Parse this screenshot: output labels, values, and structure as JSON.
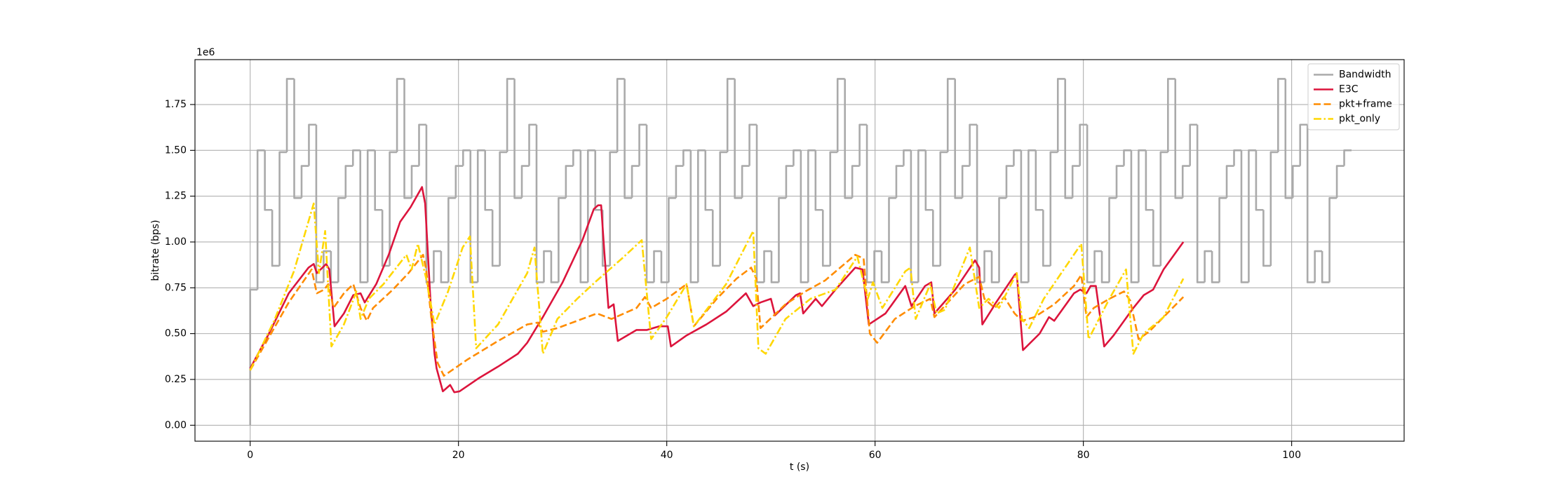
{
  "chart_data": {
    "type": "line",
    "xlabel": "t (s)",
    "ylabel": "bitrate (bps)",
    "y_offset_label": "1e6",
    "xlim": [
      -5.3,
      110.8
    ],
    "ylim": [
      -87000,
      1995000
    ],
    "xticks": [
      0,
      20,
      40,
      60,
      80,
      100
    ],
    "yticks": [
      {
        "value": 0,
        "label": "0.00"
      },
      {
        "value": 250000,
        "label": "0.25"
      },
      {
        "value": 500000,
        "label": "0.50"
      },
      {
        "value": 750000,
        "label": "0.75"
      },
      {
        "value": 1000000,
        "label": "1.00"
      },
      {
        "value": 1250000,
        "label": "1.25"
      },
      {
        "value": 1500000,
        "label": "1.50"
      },
      {
        "value": 1750000,
        "label": "1.75"
      }
    ],
    "grid": true,
    "legend": "upper right",
    "series": [
      {
        "name": "Bandwidth",
        "color": "#aaaaaa",
        "linestyle": "solid",
        "drawstyle": "steps-post",
        "x": [
          0,
          0,
          0.705,
          1.41,
          2.115,
          2.82,
          3.525,
          4.23,
          4.935,
          5.64,
          6.345,
          7.05,
          7.755,
          8.46,
          9.165,
          9.87,
          10.575,
          11.28,
          11.985,
          12.69,
          13.395,
          14.1,
          14.805,
          15.51,
          16.215,
          16.92,
          17.625,
          18.33,
          19.035,
          19.74,
          20.445,
          21.15,
          21.855,
          22.56,
          23.265,
          23.97,
          24.675,
          25.38,
          26.085,
          26.79,
          27.495,
          28.2,
          28.905,
          29.61,
          30.315,
          31.02,
          31.725,
          32.43,
          33.135,
          33.84,
          34.545,
          35.25,
          35.955,
          36.66,
          37.365,
          38.07,
          38.775,
          39.48,
          40.185,
          40.89,
          41.595,
          42.3,
          43.005,
          43.71,
          44.415,
          45.12,
          45.825,
          46.53,
          47.235,
          47.94,
          48.645,
          49.35,
          50.055,
          50.76,
          51.465,
          52.17,
          52.875,
          53.58,
          54.285,
          54.99,
          55.695,
          56.4,
          57.105,
          57.81,
          58.515,
          59.22,
          59.925,
          60.63,
          61.335,
          62.04,
          62.745,
          63.45,
          64.155,
          64.86,
          65.565,
          66.27,
          66.975,
          67.68,
          68.385,
          69.09,
          69.795,
          70.5,
          71.205,
          71.91,
          72.615,
          73.32,
          74.025,
          74.73,
          75.435,
          76.14,
          76.845,
          77.55,
          78.255,
          78.96,
          79.665,
          80.37,
          81.075,
          81.78,
          82.485,
          83.19,
          83.895,
          84.6,
          85.305,
          86.01,
          86.715,
          87.42,
          88.125,
          88.83,
          89.535,
          90.24,
          90.945,
          91.65,
          92.355,
          93.06,
          93.765,
          94.47,
          95.175,
          95.88,
          96.585,
          97.29,
          97.995,
          98.7,
          99.405,
          100.11,
          100.815,
          101.52,
          102.225,
          102.93,
          103.635,
          104.34,
          105.045,
          105.75
        ],
        "values": [
          0,
          740000,
          1500000,
          1175000,
          870000,
          1490000,
          1890000,
          1240000,
          1415000,
          1640000,
          780000,
          950000,
          780000,
          1240000,
          1415000,
          1500000,
          780000,
          1500000,
          1175000,
          870000,
          1490000,
          1890000,
          1240000,
          1415000,
          1640000,
          780000,
          950000,
          780000,
          1240000,
          1415000,
          1500000,
          780000,
          1500000,
          1175000,
          870000,
          1490000,
          1890000,
          1240000,
          1415000,
          1640000,
          780000,
          950000,
          780000,
          1240000,
          1415000,
          1500000,
          780000,
          1500000,
          1175000,
          870000,
          1490000,
          1890000,
          1240000,
          1415000,
          1640000,
          780000,
          950000,
          780000,
          1240000,
          1415000,
          1500000,
          780000,
          1500000,
          1175000,
          870000,
          1490000,
          1890000,
          1240000,
          1415000,
          1640000,
          780000,
          950000,
          780000,
          1240000,
          1415000,
          1500000,
          780000,
          1500000,
          1175000,
          870000,
          1490000,
          1890000,
          1240000,
          1415000,
          1640000,
          780000,
          950000,
          780000,
          1240000,
          1415000,
          1500000,
          780000,
          1500000,
          1175000,
          870000,
          1490000,
          1890000,
          1240000,
          1415000,
          1640000,
          780000,
          950000,
          780000,
          1240000,
          1415000,
          1500000,
          780000,
          1500000,
          1175000,
          870000,
          1490000,
          1890000,
          1240000,
          1415000,
          1640000,
          780000,
          950000,
          780000,
          1240000,
          1415000,
          1500000,
          780000,
          1500000,
          1175000,
          870000,
          1490000,
          1890000,
          1240000,
          1415000,
          1640000,
          780000,
          950000,
          780000,
          1240000,
          1415000,
          1500000,
          780000,
          1500000,
          1175000,
          870000,
          1490000,
          1890000,
          1240000,
          1415000,
          1640000,
          780000,
          950000,
          780000,
          1240000,
          1415000,
          1500000,
          1500000
        ]
      },
      {
        "name": "E3C",
        "color": "#dc143c",
        "linestyle": "solid",
        "x": [
          0,
          1.8,
          3.7,
          5.6,
          6.1,
          6.4,
          7.3,
          7.6,
          8.1,
          9.0,
          9.9,
          10.6,
          11.0,
          12.1,
          13.3,
          14.4,
          15.4,
          16.1,
          16.5,
          16.8,
          17.3,
          17.7,
          17.9,
          18.5,
          19.2,
          19.6,
          20.1,
          21.9,
          23.8,
          25.7,
          26.6,
          28.1,
          30.0,
          31.9,
          33.0,
          33.4,
          33.7,
          34.0,
          34.4,
          34.9,
          35.3,
          36.2,
          37.1,
          38.1,
          39.3,
          40.1,
          40.4,
          41.9,
          43.8,
          45.7,
          47.6,
          48.3,
          49.0,
          50.0,
          50.4,
          52.4,
          52.8,
          53.1,
          54.3,
          54.9,
          56.2,
          58.1,
          58.8,
          59.4,
          61.0,
          62.9,
          63.5,
          64.8,
          65.4,
          65.7,
          67.7,
          69.6,
          70.0,
          70.3,
          71.3,
          71.5,
          73.4,
          73.6,
          74.2,
          75.8,
          76.7,
          77.2,
          79.1,
          79.7,
          80.3,
          80.7,
          81.2,
          82.0,
          82.9,
          84.8,
          85.8,
          86.7,
          87.7,
          89.6
        ],
        "values": [
          310000,
          500000,
          720000,
          860000,
          880000,
          830000,
          880000,
          850000,
          540000,
          610000,
          710000,
          720000,
          670000,
          770000,
          930000,
          1110000,
          1190000,
          1260000,
          1300000,
          1210000,
          690000,
          390000,
          310000,
          185000,
          220000,
          180000,
          185000,
          255000,
          320000,
          390000,
          450000,
          590000,
          780000,
          1010000,
          1180000,
          1200000,
          1200000,
          950000,
          640000,
          660000,
          460000,
          490000,
          520000,
          520000,
          540000,
          540000,
          430000,
          490000,
          550000,
          620000,
          720000,
          650000,
          670000,
          690000,
          600000,
          710000,
          720000,
          610000,
          690000,
          650000,
          740000,
          860000,
          850000,
          550000,
          610000,
          760000,
          650000,
          760000,
          780000,
          610000,
          740000,
          900000,
          860000,
          550000,
          640000,
          660000,
          820000,
          830000,
          410000,
          500000,
          590000,
          570000,
          720000,
          740000,
          720000,
          760000,
          760000,
          430000,
          490000,
          640000,
          710000,
          740000,
          850000,
          1000000
        ]
      },
      {
        "name": "pkt+frame",
        "color": "#ff8c00",
        "linestyle": "dashed",
        "x": [
          0,
          1.8,
          3.7,
          5.9,
          6.4,
          7.1,
          7.5,
          8.0,
          9.0,
          9.9,
          10.6,
          11.2,
          11.8,
          13.7,
          15.2,
          16.6,
          16.9,
          17.4,
          18.0,
          18.6,
          20.9,
          23.8,
          26.6,
          27.6,
          28.1,
          29.5,
          31.4,
          33.3,
          34.7,
          37.1,
          37.9,
          38.5,
          40.0,
          41.9,
          42.6,
          44.8,
          46.7,
          48.1,
          48.6,
          49.0,
          51.4,
          53.3,
          55.2,
          58.1,
          58.9,
          59.5,
          60.2,
          61.9,
          63.8,
          65.3,
          65.7,
          68.6,
          70.0,
          70.5,
          71.5,
          72.4,
          73.4,
          74.1,
          75.3,
          77.2,
          79.1,
          79.8,
          80.3,
          81.0,
          82.5,
          83.9,
          84.5,
          85.3,
          86.3,
          87.7,
          89.6
        ],
        "values": [
          300000,
          480000,
          670000,
          850000,
          720000,
          740000,
          770000,
          640000,
          720000,
          770000,
          640000,
          570000,
          640000,
          740000,
          830000,
          930000,
          850000,
          580000,
          340000,
          270000,
          360000,
          460000,
          550000,
          560000,
          510000,
          530000,
          570000,
          610000,
          580000,
          640000,
          700000,
          640000,
          690000,
          770000,
          540000,
          690000,
          800000,
          860000,
          800000,
          530000,
          660000,
          730000,
          790000,
          930000,
          910000,
          500000,
          450000,
          580000,
          650000,
          690000,
          590000,
          770000,
          810000,
          690000,
          640000,
          700000,
          610000,
          570000,
          590000,
          660000,
          760000,
          820000,
          590000,
          640000,
          690000,
          730000,
          680000,
          470000,
          510000,
          590000,
          700000
        ]
      },
      {
        "name": "pkt_only",
        "color": "#ffd700",
        "linestyle": "dashdot",
        "x": [
          0,
          2.3,
          4.2,
          6.1,
          6.6,
          7.2,
          7.8,
          9.0,
          10.2,
          10.6,
          11.4,
          12.8,
          15.0,
          15.5,
          16.1,
          16.9,
          17.7,
          19.0,
          20.4,
          21.1,
          21.7,
          23.8,
          26.6,
          27.3,
          28.1,
          29.5,
          31.4,
          33.3,
          35.7,
          37.6,
          38.5,
          40.0,
          41.9,
          42.6,
          45.7,
          48.3,
          48.8,
          49.5,
          51.4,
          53.8,
          56.2,
          58.3,
          59.3,
          59.8,
          60.7,
          62.9,
          63.4,
          63.9,
          65.3,
          65.9,
          66.7,
          69.1,
          70.0,
          70.9,
          71.9,
          73.6,
          74.1,
          74.8,
          76.2,
          79.8,
          80.5,
          82.5,
          84.1,
          84.8,
          85.8,
          87.7,
          89.6
        ],
        "values": [
          300000,
          570000,
          840000,
          1210000,
          830000,
          1060000,
          430000,
          550000,
          730000,
          580000,
          690000,
          770000,
          930000,
          850000,
          990000,
          800000,
          550000,
          730000,
          970000,
          1030000,
          420000,
          550000,
          830000,
          970000,
          390000,
          580000,
          690000,
          790000,
          910000,
          1010000,
          470000,
          590000,
          770000,
          540000,
          770000,
          1060000,
          420000,
          390000,
          580000,
          690000,
          740000,
          920000,
          690000,
          780000,
          640000,
          840000,
          860000,
          580000,
          770000,
          610000,
          630000,
          970000,
          640000,
          690000,
          640000,
          830000,
          580000,
          530000,
          690000,
          990000,
          470000,
          690000,
          850000,
          390000,
          500000,
          590000,
          800000
        ]
      }
    ]
  }
}
